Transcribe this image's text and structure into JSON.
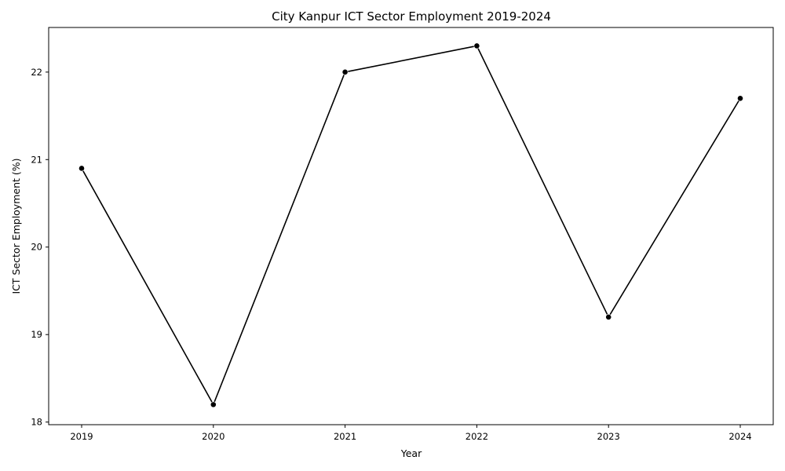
{
  "chart_data": {
    "type": "line",
    "title": "City Kanpur ICT Sector Employment 2019-2024",
    "xlabel": "Year",
    "ylabel": "ICT Sector Employment (%)",
    "x": [
      "2019",
      "2020",
      "2021",
      "2022",
      "2023",
      "2024"
    ],
    "series": [
      {
        "values": [
          20.9,
          18.2,
          22.0,
          22.3,
          19.2,
          21.7
        ]
      }
    ],
    "ylim": [
      17.97,
      22.51
    ],
    "yticks": [
      18,
      19,
      20,
      21,
      22
    ],
    "grid": false,
    "marker": "circle",
    "line_color": "#000000",
    "marker_color": "#000000"
  }
}
